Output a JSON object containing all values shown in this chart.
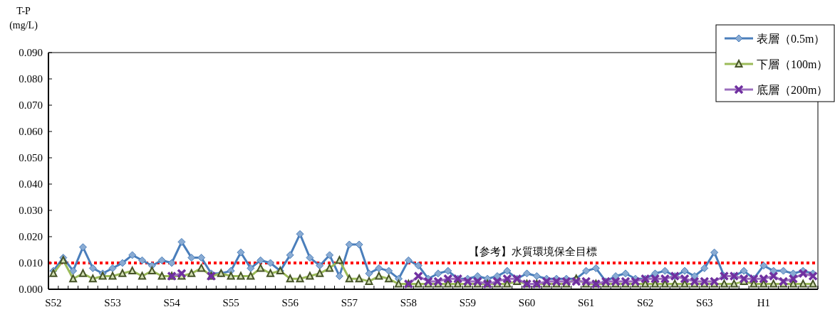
{
  "chart_data": {
    "type": "line",
    "ylabel": "T-P (mg/L)",
    "categories": [
      "S52",
      null,
      null,
      null,
      null,
      null,
      "S53",
      null,
      null,
      null,
      null,
      null,
      "S54",
      null,
      null,
      null,
      null,
      null,
      "S55",
      null,
      null,
      null,
      null,
      null,
      "S56",
      null,
      null,
      null,
      null,
      null,
      "S57",
      null,
      null,
      null,
      null,
      null,
      "S58",
      null,
      null,
      null,
      null,
      null,
      "S59",
      null,
      null,
      null,
      null,
      null,
      "S60",
      null,
      null,
      null,
      null,
      null,
      "S61",
      null,
      null,
      null,
      null,
      null,
      "S62",
      null,
      null,
      null,
      null,
      null,
      "S63",
      null,
      null,
      null,
      null,
      null,
      "H1",
      null,
      null,
      null,
      null,
      null
    ],
    "series": [
      {
        "name": "表層（0.5m）",
        "color": "#4a7ebb",
        "marker": "diamond",
        "values": [
          0.007,
          0.012,
          0.007,
          0.016,
          0.008,
          0.006,
          0.008,
          0.01,
          0.013,
          0.011,
          0.009,
          0.011,
          0.01,
          0.018,
          0.012,
          0.012,
          0.006,
          0.006,
          0.007,
          0.014,
          0.008,
          0.011,
          0.01,
          0.007,
          0.013,
          0.021,
          0.012,
          0.009,
          0.013,
          0.005,
          0.017,
          0.017,
          0.006,
          0.008,
          0.007,
          0.004,
          0.011,
          0.009,
          0.004,
          0.006,
          0.007,
          0.004,
          0.004,
          0.005,
          0.004,
          0.005,
          0.007,
          0.004,
          0.006,
          0.005,
          0.004,
          0.004,
          0.004,
          0.004,
          0.007,
          0.008,
          0.003,
          0.005,
          0.006,
          0.004,
          0.004,
          0.006,
          0.007,
          0.005,
          0.007,
          0.005,
          0.008,
          0.014,
          0.005,
          0.005,
          0.007,
          0.004,
          0.009,
          0.007,
          0.007,
          0.006,
          0.007,
          0.006
        ]
      },
      {
        "name": "下層（100m）",
        "color": "#9bbb59",
        "marker": "triangle",
        "values": [
          0.006,
          0.011,
          0.004,
          0.006,
          0.004,
          0.005,
          0.005,
          0.006,
          0.007,
          0.005,
          0.007,
          0.005,
          0.005,
          0.005,
          0.006,
          0.008,
          0.005,
          0.006,
          0.005,
          0.005,
          0.005,
          0.008,
          0.006,
          0.007,
          0.004,
          0.004,
          0.005,
          0.006,
          0.008,
          0.011,
          0.004,
          0.004,
          0.003,
          0.005,
          0.004,
          0.002,
          0.002,
          0.002,
          0.002,
          0.002,
          0.002,
          0.002,
          0.002,
          0.002,
          0.002,
          0.002,
          0.002,
          0.003,
          0.002,
          0.002,
          0.002,
          0.002,
          0.002,
          0.004,
          0.002,
          0.002,
          0.002,
          0.002,
          0.002,
          0.002,
          0.002,
          0.002,
          0.002,
          0.002,
          0.002,
          0.002,
          0.002,
          0.002,
          0.002,
          0.002,
          0.003,
          0.002,
          0.002,
          0.002,
          0.002,
          0.002,
          0.002,
          0.002
        ]
      },
      {
        "name": "底層（200m）",
        "color": "#7030a0",
        "marker": "cross",
        "values": [
          null,
          null,
          null,
          null,
          null,
          null,
          null,
          null,
          null,
          null,
          null,
          null,
          0.005,
          0.006,
          null,
          null,
          0.005,
          null,
          null,
          null,
          null,
          null,
          null,
          null,
          null,
          null,
          null,
          null,
          null,
          null,
          null,
          null,
          null,
          null,
          null,
          null,
          0.002,
          0.005,
          0.003,
          0.003,
          0.004,
          0.004,
          0.003,
          0.003,
          0.002,
          0.003,
          0.004,
          0.004,
          0.002,
          0.002,
          0.003,
          0.003,
          0.003,
          0.003,
          0.003,
          0.002,
          0.003,
          0.003,
          0.003,
          0.003,
          0.004,
          0.004,
          0.004,
          0.005,
          0.004,
          0.003,
          0.003,
          0.003,
          0.005,
          0.005,
          0.004,
          0.004,
          0.004,
          0.005,
          0.003,
          0.004,
          0.006,
          0.005
        ]
      }
    ],
    "ylim": [
      0,
      0.09
    ],
    "yticks": [
      {
        "value": 0,
        "label": "0.000"
      },
      {
        "value": 0.01,
        "label": "0.010"
      },
      {
        "value": 0.02,
        "label": "0.020"
      },
      {
        "value": 0.03,
        "label": "0.030"
      },
      {
        "value": 0.04,
        "label": "0.040"
      },
      {
        "value": 0.05,
        "label": "0.050"
      },
      {
        "value": 0.06,
        "label": "0.060"
      },
      {
        "value": 0.07,
        "label": "0.070"
      },
      {
        "value": 0.08,
        "label": "0.080"
      },
      {
        "value": 0.09,
        "label": "0.090"
      }
    ],
    "ref_lines": [
      {
        "axis": "y",
        "value": 0.01,
        "label": "【参考】水質環境保全目標",
        "color": "#ff0000",
        "line_style": "dotted"
      }
    ],
    "legend": "top right"
  }
}
